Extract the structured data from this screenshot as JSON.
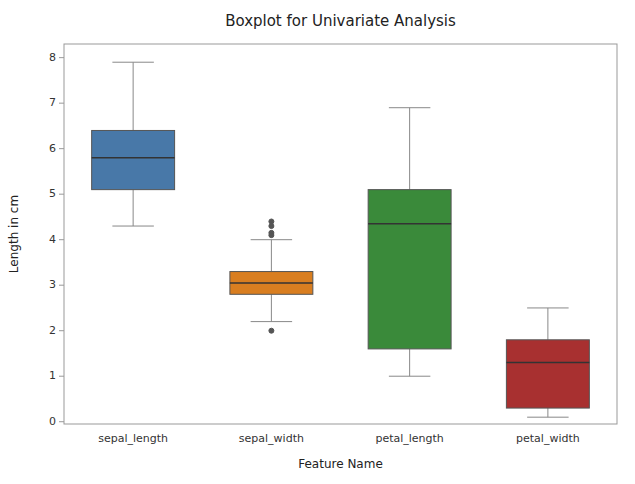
{
  "chart_data": {
    "type": "box",
    "title": "Boxplot for Univariate Analysis",
    "xlabel": "Feature Name",
    "ylabel": "Length in cm",
    "categories": [
      "sepal_length",
      "sepal_width",
      "petal_length",
      "petal_width"
    ],
    "colors": [
      "#4878a8",
      "#d97e20",
      "#3a8a3a",
      "#a83030"
    ],
    "boxes": [
      {
        "med": 5.8,
        "q1": 5.1,
        "q3": 6.4,
        "whislo": 4.3,
        "whishi": 7.9,
        "fliers": []
      },
      {
        "med": 3.05,
        "q1": 2.8,
        "q3": 3.3,
        "whislo": 2.2,
        "whishi": 4.0,
        "fliers": [
          4.4,
          4.3,
          4.15,
          4.1,
          2.0
        ]
      },
      {
        "med": 4.35,
        "q1": 1.6,
        "q3": 5.1,
        "whislo": 1.0,
        "whishi": 6.9,
        "fliers": []
      },
      {
        "med": 1.3,
        "q1": 0.3,
        "q3": 1.8,
        "whislo": 0.1,
        "whishi": 2.5,
        "fliers": []
      }
    ],
    "ylim": [
      -0.05,
      8.3
    ],
    "yticks": [
      0,
      1,
      2,
      3,
      4,
      5,
      6,
      7,
      8
    ],
    "grid": false
  }
}
